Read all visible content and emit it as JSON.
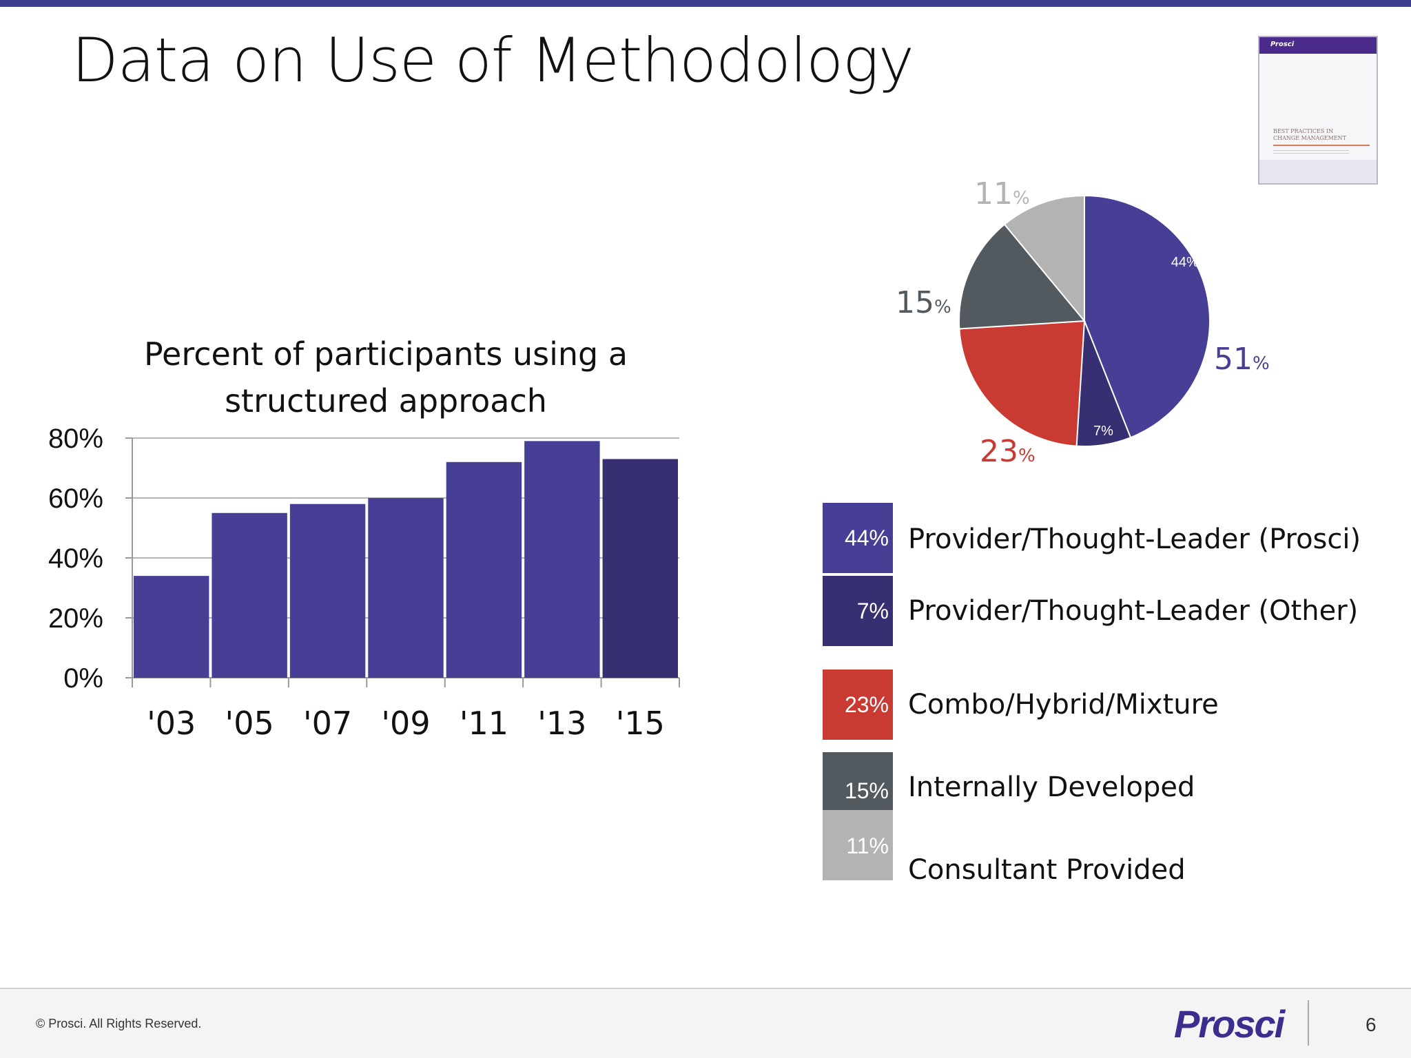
{
  "slide": {
    "title": "Data on Use of Methodology",
    "page_number": "6",
    "copyright": "© Prosci. All Rights Reserved.",
    "brand": "Prosci",
    "report_thumbnail": {
      "logo": "Prosci",
      "title": "BEST PRACTICES IN\nCHANGE MANAGEMENT"
    }
  },
  "colors": {
    "accent": "#3d3b8e",
    "bar": "#463f95",
    "bar_latest": "#362f72",
    "prosci": "#463f95",
    "other": "#362f72",
    "combo": "#c93a33",
    "internal": "#535a5f",
    "consultant": "#b3b3b3"
  },
  "chart_data": [
    {
      "type": "bar",
      "title": "Percent of participants using a\nstructured approach",
      "categories": [
        "'03",
        "'05",
        "'07",
        "'09",
        "'11",
        "'13",
        "'15"
      ],
      "values": [
        34,
        55,
        58,
        60,
        72,
        79,
        73
      ],
      "ylim": [
        0,
        80
      ],
      "yticks": [
        "0%",
        "20%",
        "40%",
        "60%",
        "80%"
      ],
      "ytick_values": [
        0,
        20,
        40,
        60,
        80
      ],
      "xlabel": "",
      "ylabel": "",
      "grid": true
    },
    {
      "type": "pie",
      "slices": [
        {
          "label": "Provider/Thought-Leader (Prosci)",
          "value": 44,
          "display": "44%",
          "color_key": "prosci"
        },
        {
          "label": "Provider/Thought-Leader (Other)",
          "value": 7,
          "display": "7%",
          "color_key": "other"
        },
        {
          "label": "Combo/Hybrid/Mixture",
          "value": 23,
          "display": "23%",
          "color_key": "combo"
        },
        {
          "label": "Internally Developed",
          "value": 15,
          "display": "15%",
          "color_key": "internal"
        },
        {
          "label": "Consultant Provided",
          "value": 11,
          "display": "11%",
          "color_key": "consultant"
        }
      ],
      "group_labels": [
        {
          "number": "51",
          "unit": "%",
          "color_key": "prosci"
        },
        {
          "number": "23",
          "unit": "%",
          "color_key": "combo"
        },
        {
          "number": "15",
          "unit": "%",
          "color_key": "internal"
        },
        {
          "number": "11",
          "unit": "%",
          "color_key": "consultant"
        }
      ],
      "legend_placement": "bottom-right"
    }
  ],
  "legend": [
    {
      "pct": "44%",
      "label": "Provider/Thought-Leader (Prosci)",
      "color_key": "prosci"
    },
    {
      "pct": "7%",
      "label": "Provider/Thought-Leader (Other)",
      "color_key": "other"
    },
    {
      "pct": "23%",
      "label": "Combo/Hybrid/Mixture",
      "color_key": "combo"
    },
    {
      "pct": "15%",
      "label": "Internally Developed",
      "color_key": "internal"
    },
    {
      "pct": "11%",
      "label": "Consultant Provided",
      "color_key": "consultant"
    }
  ]
}
